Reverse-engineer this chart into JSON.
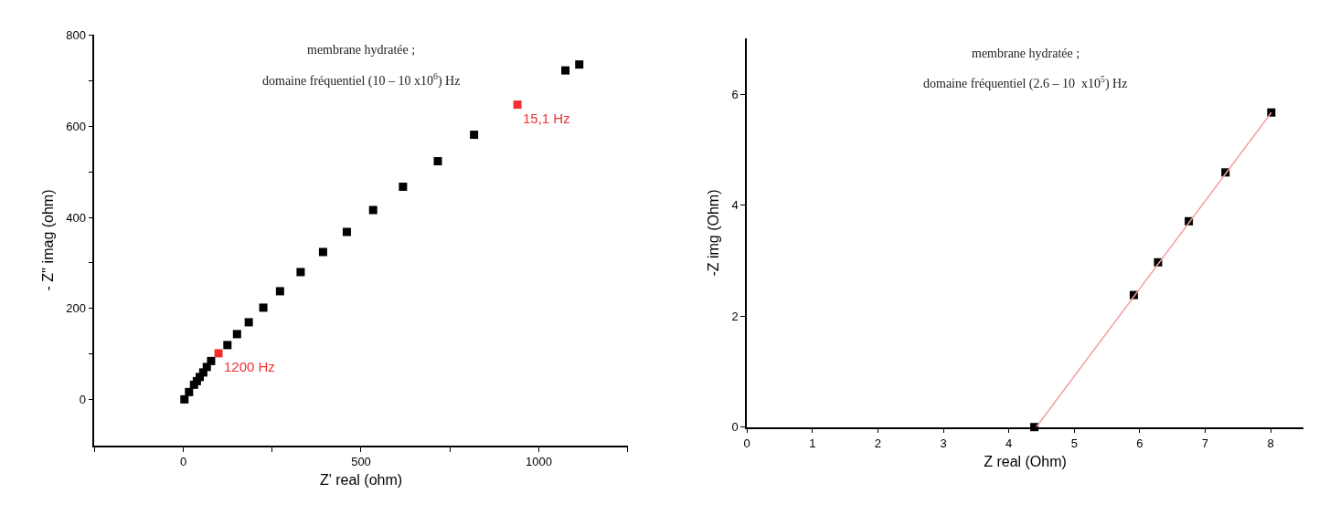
{
  "chart_data": [
    {
      "type": "scatter",
      "title": "membrane hydratée ;",
      "subtitle": "domaine fréquentiel (10 – 10 x10$^{6}$) Hz",
      "xlabel": "Z' real (ohm)",
      "ylabel": "- Z'' imag (ohm)",
      "xlim": [
        -250,
        1250
      ],
      "ylim": [
        -100,
        800
      ],
      "xticks": [
        {
          "value": -250,
          "label": null
        },
        0,
        {
          "value": 250,
          "label": null
        },
        500,
        {
          "value": 750,
          "label": null
        },
        1000,
        {
          "value": 1250,
          "label": null
        }
      ],
      "yticks": [
        0,
        {
          "value": 100,
          "label": null
        },
        200,
        {
          "value": 300,
          "label": null
        },
        400,
        {
          "value": 500,
          "label": null
        },
        600,
        {
          "value": 700,
          "label": null
        },
        800
      ],
      "marker": "square",
      "series": [
        {
          "color": "#000000",
          "x": [
            1114,
            1075,
            818,
            716,
            618,
            534,
            460,
            393,
            330,
            272,
            225,
            184,
            151,
            124,
            78,
            66,
            56,
            46,
            38,
            30,
            16,
            3
          ],
          "values": [
            735,
            722,
            581,
            523,
            467,
            416,
            368,
            324,
            280,
            238,
            202,
            170,
            144,
            120,
            85,
            72,
            60,
            50,
            41,
            33,
            17,
            1
          ]
        },
        {
          "color": "#f03030",
          "x": [
            940,
            99
          ],
          "values": [
            647,
            102
          ]
        }
      ],
      "annotations": [
        {
          "text": "15,1 Hz",
          "x": 940,
          "y": 647
        },
        {
          "text": "1200 Hz",
          "x": 99,
          "y": 102
        }
      ]
    },
    {
      "type": "scatter",
      "title": "membrane hydratée ;",
      "subtitle": "domaine fréquentiel (2.6 – 10  x10$^{5}$) Hz",
      "xlabel": "Z real (Ohm)",
      "ylabel": "-Z img (Ohm)",
      "xlim": [
        0,
        8.5
      ],
      "ylim": [
        0,
        7
      ],
      "xticks": [
        0,
        1,
        2,
        3,
        4,
        5,
        6,
        7,
        8
      ],
      "yticks": [
        0,
        2,
        4,
        6
      ],
      "marker": "square",
      "series": [
        {
          "color": "#000000",
          "x": [
            4.39,
            5.91,
            6.28,
            6.75,
            7.31,
            8.01
          ],
          "values": [
            0,
            2.38,
            2.97,
            3.71,
            4.59,
            5.67
          ]
        },
        {
          "type": "line",
          "color": "#f4a0a0",
          "marker": "none",
          "x": [
            4.42,
            8.01
          ],
          "values": [
            0,
            5.67
          ]
        }
      ]
    }
  ]
}
